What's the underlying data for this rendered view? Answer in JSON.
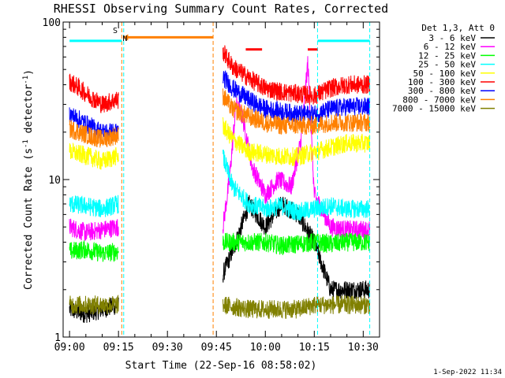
{
  "chart_data": {
    "type": "line",
    "title": "RHESSI Observing Summary Count Rates, Corrected",
    "xlabel": "Start Time (22-Sep-16 08:58:02)",
    "ylabel": "Corrected Count Rate (s⁻¹ detector⁻¹)",
    "ylabel_parts": {
      "main": "Corrected Count Rate (s",
      "exp1": "-1",
      "mid": " detector",
      "exp2": "-1",
      "close": ")"
    },
    "y_scale": "log",
    "ylim": [
      1,
      100
    ],
    "xlim": [
      "08:58:02",
      "10:35:00"
    ],
    "x_ticks": [
      "09:00",
      "09:15",
      "09:30",
      "09:45",
      "10:00",
      "10:15",
      "10:30"
    ],
    "y_ticks": [
      "1",
      "10",
      "100"
    ],
    "grid": false,
    "legend_position": "right",
    "legend_title": "Det 1,3, Att 0",
    "series": [
      {
        "name": "3 - 6 keV",
        "color": "#000000",
        "segments": [
          {
            "x": [
              "09:00",
              "09:05",
              "09:10",
              "09:15"
            ],
            "y": [
              1.5,
              1.4,
              1.5,
              1.6
            ]
          },
          {
            "x": [
              "09:47",
              "09:51",
              "09:55",
              "10:00",
              "10:05",
              "10:10",
              "10:15",
              "10:20",
              "10:25",
              "10:30",
              "10:32"
            ],
            "y": [
              2.5,
              4,
              7,
              5,
              7,
              6,
              4,
              2,
              2,
              2,
              2
            ]
          }
        ]
      },
      {
        "name": "6 - 12 keV",
        "color": "#ff00ff",
        "segments": [
          {
            "x": [
              "09:00",
              "09:05",
              "09:10",
              "09:15"
            ],
            "y": [
              5,
              4.6,
              4.8,
              5
            ]
          },
          {
            "x": [
              "09:47",
              "09:49",
              "09:51",
              "09:53",
              "09:56",
              "10:00",
              "10:04",
              "10:08",
              "10:11",
              "10:13",
              "10:15",
              "10:20",
              "10:25",
              "10:30",
              "10:32"
            ],
            "y": [
              5,
              10,
              30,
              25,
              12,
              8,
              10,
              9,
              18,
              55,
              8,
              5,
              4.8,
              4.8,
              4.8
            ]
          }
        ]
      },
      {
        "name": "12 - 25 keV",
        "color": "#00ff00",
        "segments": [
          {
            "x": [
              "09:00",
              "09:05",
              "09:10",
              "09:15"
            ],
            "y": [
              3.5,
              3.6,
              3.4,
              3.5
            ]
          },
          {
            "x": [
              "09:47",
              "09:55",
              "10:00",
              "10:05",
              "10:10",
              "10:15",
              "10:20",
              "10:25",
              "10:30",
              "10:32"
            ],
            "y": [
              4,
              4,
              4,
              3.8,
              3.9,
              4,
              3.9,
              4,
              4,
              4
            ]
          }
        ]
      },
      {
        "name": "25 - 50 keV",
        "color": "#00ffff",
        "segments": [
          {
            "x": [
              "09:00",
              "09:05",
              "09:10",
              "09:15"
            ],
            "y": [
              7,
              6.8,
              6.5,
              7
            ]
          },
          {
            "x": [
              "09:47",
              "09:50",
              "09:55",
              "10:00",
              "10:05",
              "10:10",
              "10:15",
              "10:20",
              "10:25",
              "10:30",
              "10:32"
            ],
            "y": [
              14,
              9,
              7,
              6.5,
              6.8,
              6.2,
              6.5,
              6.8,
              6.5,
              6.5,
              6.5
            ]
          }
        ]
      },
      {
        "name": "50 - 100 keV",
        "color": "#ffff00",
        "segments": [
          {
            "x": [
              "09:00",
              "09:03",
              "09:06",
              "09:10",
              "09:14",
              "09:15"
            ],
            "y": [
              15,
              14.5,
              14,
              13,
              14,
              14
            ]
          },
          {
            "x": [
              "09:47",
              "09:50",
              "09:55",
              "10:00",
              "10:05",
              "10:10",
              "10:15",
              "10:20",
              "10:25",
              "10:30",
              "10:32"
            ],
            "y": [
              22,
              18,
              15,
              14.5,
              14,
              14,
              15,
              16,
              17,
              17,
              17
            ]
          }
        ]
      },
      {
        "name": "100 - 300 keV",
        "color": "#ff0000",
        "segments": [
          {
            "x": [
              "09:00",
              "09:03",
              "09:06",
              "09:10",
              "09:14",
              "09:15"
            ],
            "y": [
              42,
              38,
              34,
              30,
              32,
              32
            ]
          },
          {
            "x": [
              "09:47",
              "09:50",
              "09:55",
              "10:00",
              "10:05",
              "10:10",
              "10:15",
              "10:20",
              "10:25",
              "10:30",
              "10:32"
            ],
            "y": [
              65,
              52,
              44,
              38,
              36,
              35,
              34,
              38,
              40,
              40,
              40
            ]
          }
        ]
      },
      {
        "name": "300 - 800 keV",
        "color": "#0000ff",
        "segments": [
          {
            "x": [
              "09:00",
              "09:03",
              "09:06",
              "09:10",
              "09:14",
              "09:15"
            ],
            "y": [
              26,
              24,
              22,
              20,
              20,
              20
            ]
          },
          {
            "x": [
              "09:47",
              "09:50",
              "09:55",
              "10:00",
              "10:05",
              "10:10",
              "10:15",
              "10:20",
              "10:25",
              "10:30",
              "10:32"
            ],
            "y": [
              45,
              38,
              32,
              28,
              27,
              26,
              26,
              28,
              29,
              29,
              29
            ]
          }
        ]
      },
      {
        "name": "800 - 7000 keV",
        "color": "#ff8000",
        "segments": [
          {
            "x": [
              "09:00",
              "09:03",
              "09:06",
              "09:10",
              "09:14",
              "09:15"
            ],
            "y": [
              21,
              20,
              19,
              18,
              19,
              19
            ]
          },
          {
            "x": [
              "09:47",
              "09:50",
              "09:55",
              "10:00",
              "10:05",
              "10:10",
              "10:15",
              "10:20",
              "10:25",
              "10:30",
              "10:32"
            ],
            "y": [
              34,
              28,
              25,
              23,
              22,
              22,
              22,
              23,
              23,
              23,
              23
            ]
          }
        ]
      },
      {
        "name": "7000 - 15000 keV",
        "color": "#808000",
        "segments": [
          {
            "x": [
              "09:00",
              "09:05",
              "09:10",
              "09:15"
            ],
            "y": [
              1.6,
              1.6,
              1.6,
              1.6
            ]
          },
          {
            "x": [
              "09:47",
              "09:55",
              "10:00",
              "10:05",
              "10:10",
              "10:15",
              "10:20",
              "10:25",
              "10:30",
              "10:32"
            ],
            "y": [
              1.6,
              1.5,
              1.5,
              1.5,
              1.5,
              1.6,
              1.6,
              1.6,
              1.6,
              1.6
            ]
          }
        ]
      }
    ],
    "annotations": {
      "vertical_lines": [
        {
          "x": "09:16",
          "color": "#ff8000"
        },
        {
          "x": "09:44",
          "color": "#ff8000"
        },
        {
          "x": "09:16.6",
          "color": "#00ffff"
        },
        {
          "x": "10:16",
          "color": "#00ffff"
        },
        {
          "x": "10:32",
          "color": "#00ffff"
        }
      ],
      "bars": [
        {
          "x": [
            "09:00",
            "09:16"
          ],
          "y": 76,
          "color": "#00ffff"
        },
        {
          "x": [
            "09:16.5",
            "09:44"
          ],
          "y": 80,
          "color": "#ff8000"
        },
        {
          "x": [
            "10:16",
            "10:32"
          ],
          "y": 76,
          "color": "#00ffff"
        },
        {
          "x": [
            "09:54",
            "09:59"
          ],
          "y": 67,
          "color": "#ff0000"
        },
        {
          "x": [
            "10:13",
            "10:16"
          ],
          "y": 67,
          "color": "#ff0000"
        }
      ],
      "markers": [
        {
          "text": "S",
          "x": "09:14",
          "y": 85,
          "color": "#ff8000"
        },
        {
          "text": "N",
          "x": "09:17",
          "y": 76,
          "color": "#00ffff"
        }
      ]
    }
  },
  "footer": {
    "timestamp": "1-Sep-2022 11:34"
  }
}
